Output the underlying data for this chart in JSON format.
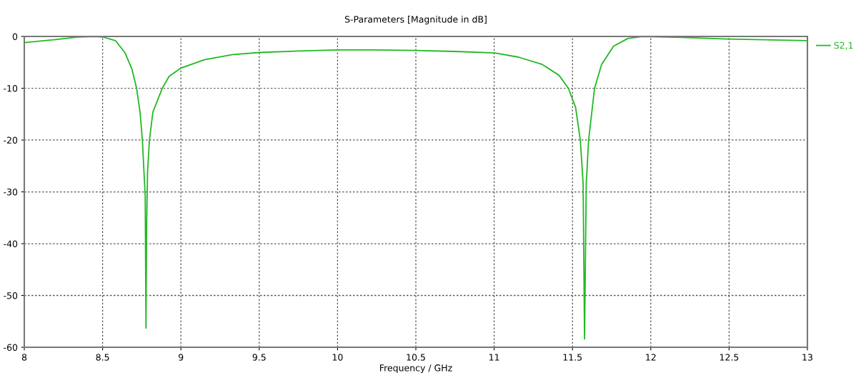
{
  "chart_data": {
    "type": "line",
    "title": "S-Parameters [Magnitude in dB]",
    "xlabel": "Frequency / GHz",
    "xlim": [
      8,
      13
    ],
    "xticks": [
      8,
      8.5,
      9,
      9.5,
      10,
      10.5,
      11,
      11.5,
      12,
      12.5,
      13
    ],
    "ylim": [
      -60,
      0
    ],
    "yticks": [
      -60,
      -50,
      -40,
      -30,
      -20,
      -10,
      0
    ],
    "grid": true,
    "legend": "right",
    "marker": "none",
    "line_style": "solid",
    "series": [
      {
        "name": "S2,1",
        "color": "#22b922",
        "x": [
          8.0,
          8.2,
          8.35,
          8.45,
          8.5,
          8.582,
          8.642,
          8.687,
          8.717,
          8.739,
          8.754,
          8.764,
          8.772,
          8.777,
          8.781,
          8.787,
          8.799,
          8.821,
          8.881,
          8.925,
          9.0,
          9.15,
          9.33,
          9.5,
          9.75,
          10.0,
          10.25,
          10.5,
          10.75,
          11.005,
          11.156,
          11.307,
          11.414,
          11.474,
          11.52,
          11.55,
          11.568,
          11.577,
          11.588,
          11.603,
          11.641,
          11.686,
          11.762,
          11.853,
          11.944,
          12.2,
          12.5,
          13.0
        ],
        "values": [
          -1.2,
          -0.6,
          -0.1,
          0,
          -0.1,
          -0.8,
          -3.1,
          -6.3,
          -10,
          -14.6,
          -20,
          -26.1,
          -30.7,
          -56.3,
          -36.7,
          -26.1,
          -20,
          -14.6,
          -10,
          -7.7,
          -6.1,
          -4.5,
          -3.5,
          -3.1,
          -2.8,
          -2.6,
          -2.6,
          -2.7,
          -2.9,
          -3.2,
          -4.0,
          -5.4,
          -7.5,
          -10,
          -13.7,
          -20,
          -28.4,
          -58.4,
          -28.4,
          -20,
          -10,
          -5.4,
          -1.9,
          -0.4,
          0,
          -0.2,
          -0.5,
          -0.8
        ]
      }
    ]
  }
}
